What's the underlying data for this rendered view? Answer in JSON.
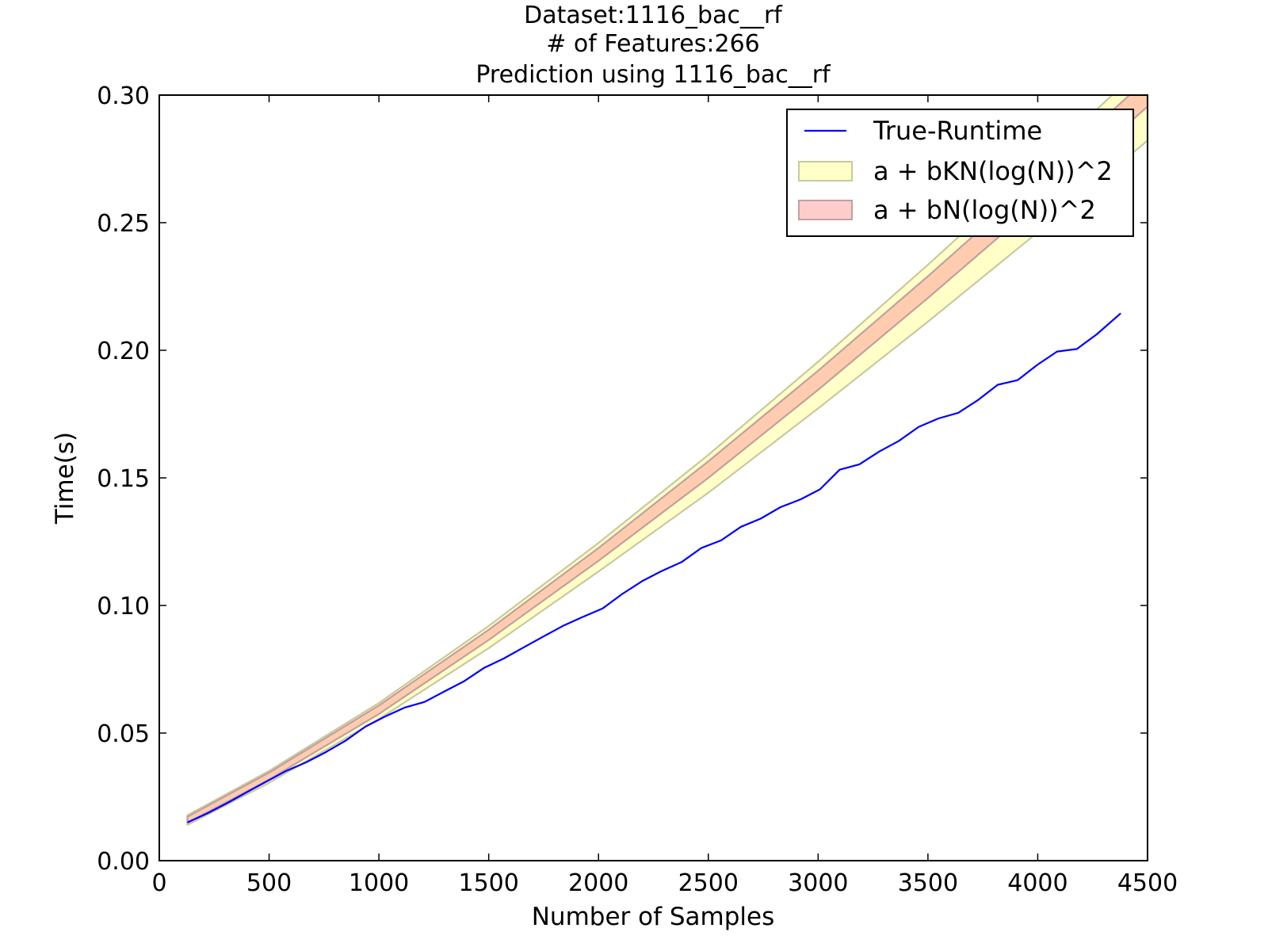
{
  "chart_data": {
    "type": "line",
    "title_lines": [
      "Dataset:1116_bac__rf",
      "# of Features:266",
      "Prediction using 1116_bac__rf"
    ],
    "xlabel": "Number of Samples",
    "ylabel": "Time(s)",
    "xlim": [
      0,
      4500
    ],
    "ylim": [
      0,
      0.3
    ],
    "xticks": [
      0,
      500,
      1000,
      1500,
      2000,
      2500,
      3000,
      3500,
      4000,
      4500
    ],
    "yticks": [
      0,
      0.05,
      0.1,
      0.15,
      0.2,
      0.25,
      0.3
    ],
    "xtick_labels": [
      "0",
      "500",
      "1000",
      "1500",
      "2000",
      "2500",
      "3000",
      "3500",
      "4000",
      "4500"
    ],
    "ytick_labels": [
      "0.00",
      "0.05",
      "0.10",
      "0.15",
      "0.20",
      "0.25",
      "0.30"
    ],
    "grid": false,
    "legend_position": "top-right",
    "series": [
      {
        "name": "True-Runtime",
        "kind": "line",
        "color": "#0000ff",
        "x": [
          128,
          218,
          308,
          398,
          488,
          578,
          668,
          758,
          848,
          938,
          1028,
          1118,
          1208,
          1298,
          1388,
          1478,
          1568,
          1658,
          1748,
          1838,
          1928,
          2018,
          2108,
          2198,
          2288,
          2378,
          2468,
          2558,
          2648,
          2738,
          2828,
          2918,
          3008,
          3098,
          3188,
          3278,
          3368,
          3458,
          3548,
          3638,
          3728,
          3818,
          3908,
          3998,
          4088,
          4178,
          4268,
          4378
        ],
        "y": [
          0.015,
          0.0185,
          0.0225,
          0.0268,
          0.031,
          0.0352,
          0.0385,
          0.0425,
          0.047,
          0.0525,
          0.0565,
          0.06,
          0.0622,
          0.0663,
          0.0703,
          0.0755,
          0.0792,
          0.0835,
          0.0878,
          0.092,
          0.0955,
          0.0988,
          0.1045,
          0.1095,
          0.1135,
          0.117,
          0.1225,
          0.1255,
          0.1308,
          0.134,
          0.1385,
          0.1415,
          0.1455,
          0.1532,
          0.1553,
          0.1603,
          0.1645,
          0.17,
          0.1733,
          0.1755,
          0.1805,
          0.1865,
          0.1883,
          0.1943,
          0.1995,
          0.2005,
          0.2062,
          0.2145
        ]
      },
      {
        "name": "a + bKN(log(N))^2",
        "kind": "band",
        "color": "#ffff99",
        "edge_color": "#c9c9a0",
        "x": [
          128,
          500,
          1000,
          1500,
          2000,
          2500,
          3000,
          3500,
          4000,
          4500
        ],
        "lower": [
          0.014,
          0.0305,
          0.0555,
          0.0833,
          0.1133,
          0.1442,
          0.1772,
          0.2112,
          0.2462,
          0.2822
        ],
        "upper": [
          0.0178,
          0.0352,
          0.0618,
          0.092,
          0.1245,
          0.159,
          0.1955,
          0.2335,
          0.2727,
          0.313
        ]
      },
      {
        "name": "a + bN(log(N))^2",
        "kind": "band",
        "color": "#ff9999",
        "edge_color": "#c0a0a0",
        "x": [
          128,
          500,
          1000,
          1500,
          2000,
          2500,
          3000,
          3500,
          4000,
          4500
        ],
        "lower": [
          0.0148,
          0.0318,
          0.0575,
          0.0865,
          0.1175,
          0.15,
          0.1845,
          0.2205,
          0.2575,
          0.2955
        ],
        "upper": [
          0.0172,
          0.0345,
          0.0608,
          0.0905,
          0.1225,
          0.1565,
          0.192,
          0.229,
          0.2672,
          0.3065
        ]
      }
    ]
  }
}
